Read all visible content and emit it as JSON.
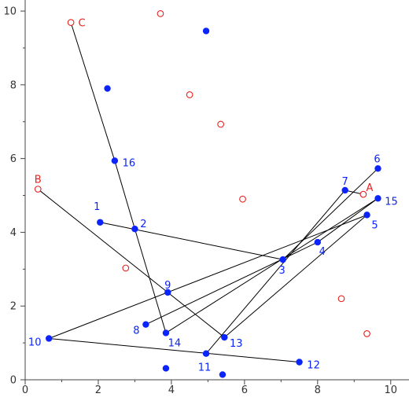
{
  "chart_data": {
    "type": "scatter",
    "title": "",
    "xlabel": "",
    "ylabel": "",
    "xlim": [
      0,
      10.5
    ],
    "ylim": [
      0,
      10.3
    ],
    "xticks": [
      0,
      2,
      4,
      6,
      8,
      10
    ],
    "yticks": [
      0,
      2,
      4,
      6,
      8,
      10
    ],
    "grid": false,
    "colors": {
      "blue": "#0b24fb",
      "red": "#e8201e",
      "line": "#000000"
    },
    "series": [
      {
        "marker": "filled-circle",
        "color": "#0b24fb",
        "points": [
          {
            "label": "1",
            "x": 2.05,
            "y": 4.27
          },
          {
            "label": "2",
            "x": 3.0,
            "y": 4.09
          },
          {
            "label": "3",
            "x": 7.05,
            "y": 3.26
          },
          {
            "label": "4",
            "x": 8.0,
            "y": 3.73
          },
          {
            "label": "5",
            "x": 9.35,
            "y": 4.47
          },
          {
            "label": "6",
            "x": 9.65,
            "y": 5.73
          },
          {
            "label": "7",
            "x": 8.75,
            "y": 5.14
          },
          {
            "label": "8",
            "x": 3.3,
            "y": 1.5
          },
          {
            "label": "9",
            "x": 3.9,
            "y": 2.37
          },
          {
            "label": "10",
            "x": 0.65,
            "y": 1.12
          },
          {
            "label": "11",
            "x": 4.95,
            "y": 0.71
          },
          {
            "label": "12",
            "x": 7.5,
            "y": 0.48
          },
          {
            "label": "13",
            "x": 5.45,
            "y": 1.15
          },
          {
            "label": "14",
            "x": 3.85,
            "y": 1.27
          },
          {
            "label": "15",
            "x": 9.65,
            "y": 4.92
          },
          {
            "label": "16",
            "x": 2.45,
            "y": 5.94
          },
          {
            "label": "",
            "x": 2.25,
            "y": 7.9
          },
          {
            "label": "",
            "x": 4.95,
            "y": 9.46
          },
          {
            "label": "",
            "x": 3.85,
            "y": 0.31
          },
          {
            "label": "",
            "x": 5.4,
            "y": 0.14
          }
        ]
      },
      {
        "marker": "open-circle",
        "color": "#e8201e",
        "points": [
          {
            "label": "A",
            "x": 9.25,
            "y": 5.03
          },
          {
            "label": "B",
            "x": 0.35,
            "y": 5.17
          },
          {
            "label": "C",
            "x": 1.25,
            "y": 9.69
          },
          {
            "label": "",
            "x": 3.7,
            "y": 9.93
          },
          {
            "label": "",
            "x": 4.5,
            "y": 7.73
          },
          {
            "label": "",
            "x": 5.35,
            "y": 6.93
          },
          {
            "label": "",
            "x": 5.95,
            "y": 4.9
          },
          {
            "label": "",
            "x": 2.75,
            "y": 3.03
          },
          {
            "label": "",
            "x": 8.65,
            "y": 2.2
          },
          {
            "label": "",
            "x": 9.35,
            "y": 1.25
          }
        ]
      }
    ],
    "paths": [
      [
        "C",
        "16",
        "2",
        "14"
      ],
      [
        "B",
        "9",
        "13"
      ],
      [
        "13",
        "5"
      ],
      [
        "5",
        "10"
      ],
      [
        "10",
        "12"
      ],
      [
        "11",
        "7"
      ],
      [
        "7",
        "A"
      ],
      [
        "1",
        "3"
      ],
      [
        "3",
        "6"
      ],
      [
        "15",
        "4"
      ],
      [
        "4",
        "8"
      ],
      [
        "14",
        "15"
      ]
    ]
  }
}
